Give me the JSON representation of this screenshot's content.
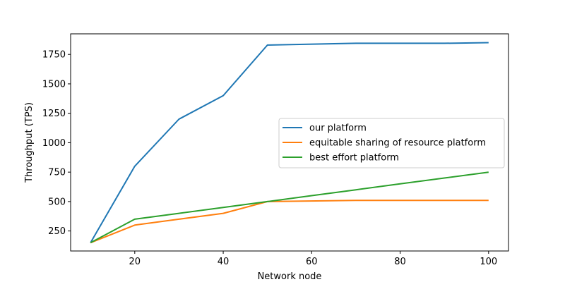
{
  "chart_data": {
    "type": "line",
    "title": "",
    "xlabel": "Network node",
    "ylabel": "Throughput (TPS)",
    "xlim": [
      5.5,
      104.5
    ],
    "ylim": [
      80,
      1925
    ],
    "xticks": [
      20,
      40,
      60,
      80,
      100
    ],
    "yticks": [
      250,
      500,
      750,
      1000,
      1250,
      1500,
      1750
    ],
    "grid": false,
    "legend_position": "center-right",
    "series": [
      {
        "name": "our platform",
        "color": "#1f77b4",
        "x": [
          10,
          20,
          30,
          40,
          50,
          70,
          90,
          100
        ],
        "y": [
          150,
          800,
          1200,
          1400,
          1830,
          1845,
          1845,
          1850
        ]
      },
      {
        "name": "equitable sharing of resource platform",
        "color": "#ff7f0e",
        "x": [
          10,
          20,
          30,
          40,
          50,
          70,
          90,
          100
        ],
        "y": [
          150,
          300,
          350,
          400,
          500,
          510,
          510,
          510
        ]
      },
      {
        "name": "best effort platform",
        "color": "#2ca02c",
        "x": [
          10,
          20,
          30,
          40,
          50,
          60,
          70,
          80,
          90,
          100
        ],
        "y": [
          150,
          350,
          400,
          450,
          500,
          550,
          600,
          650,
          700,
          750
        ]
      }
    ]
  }
}
